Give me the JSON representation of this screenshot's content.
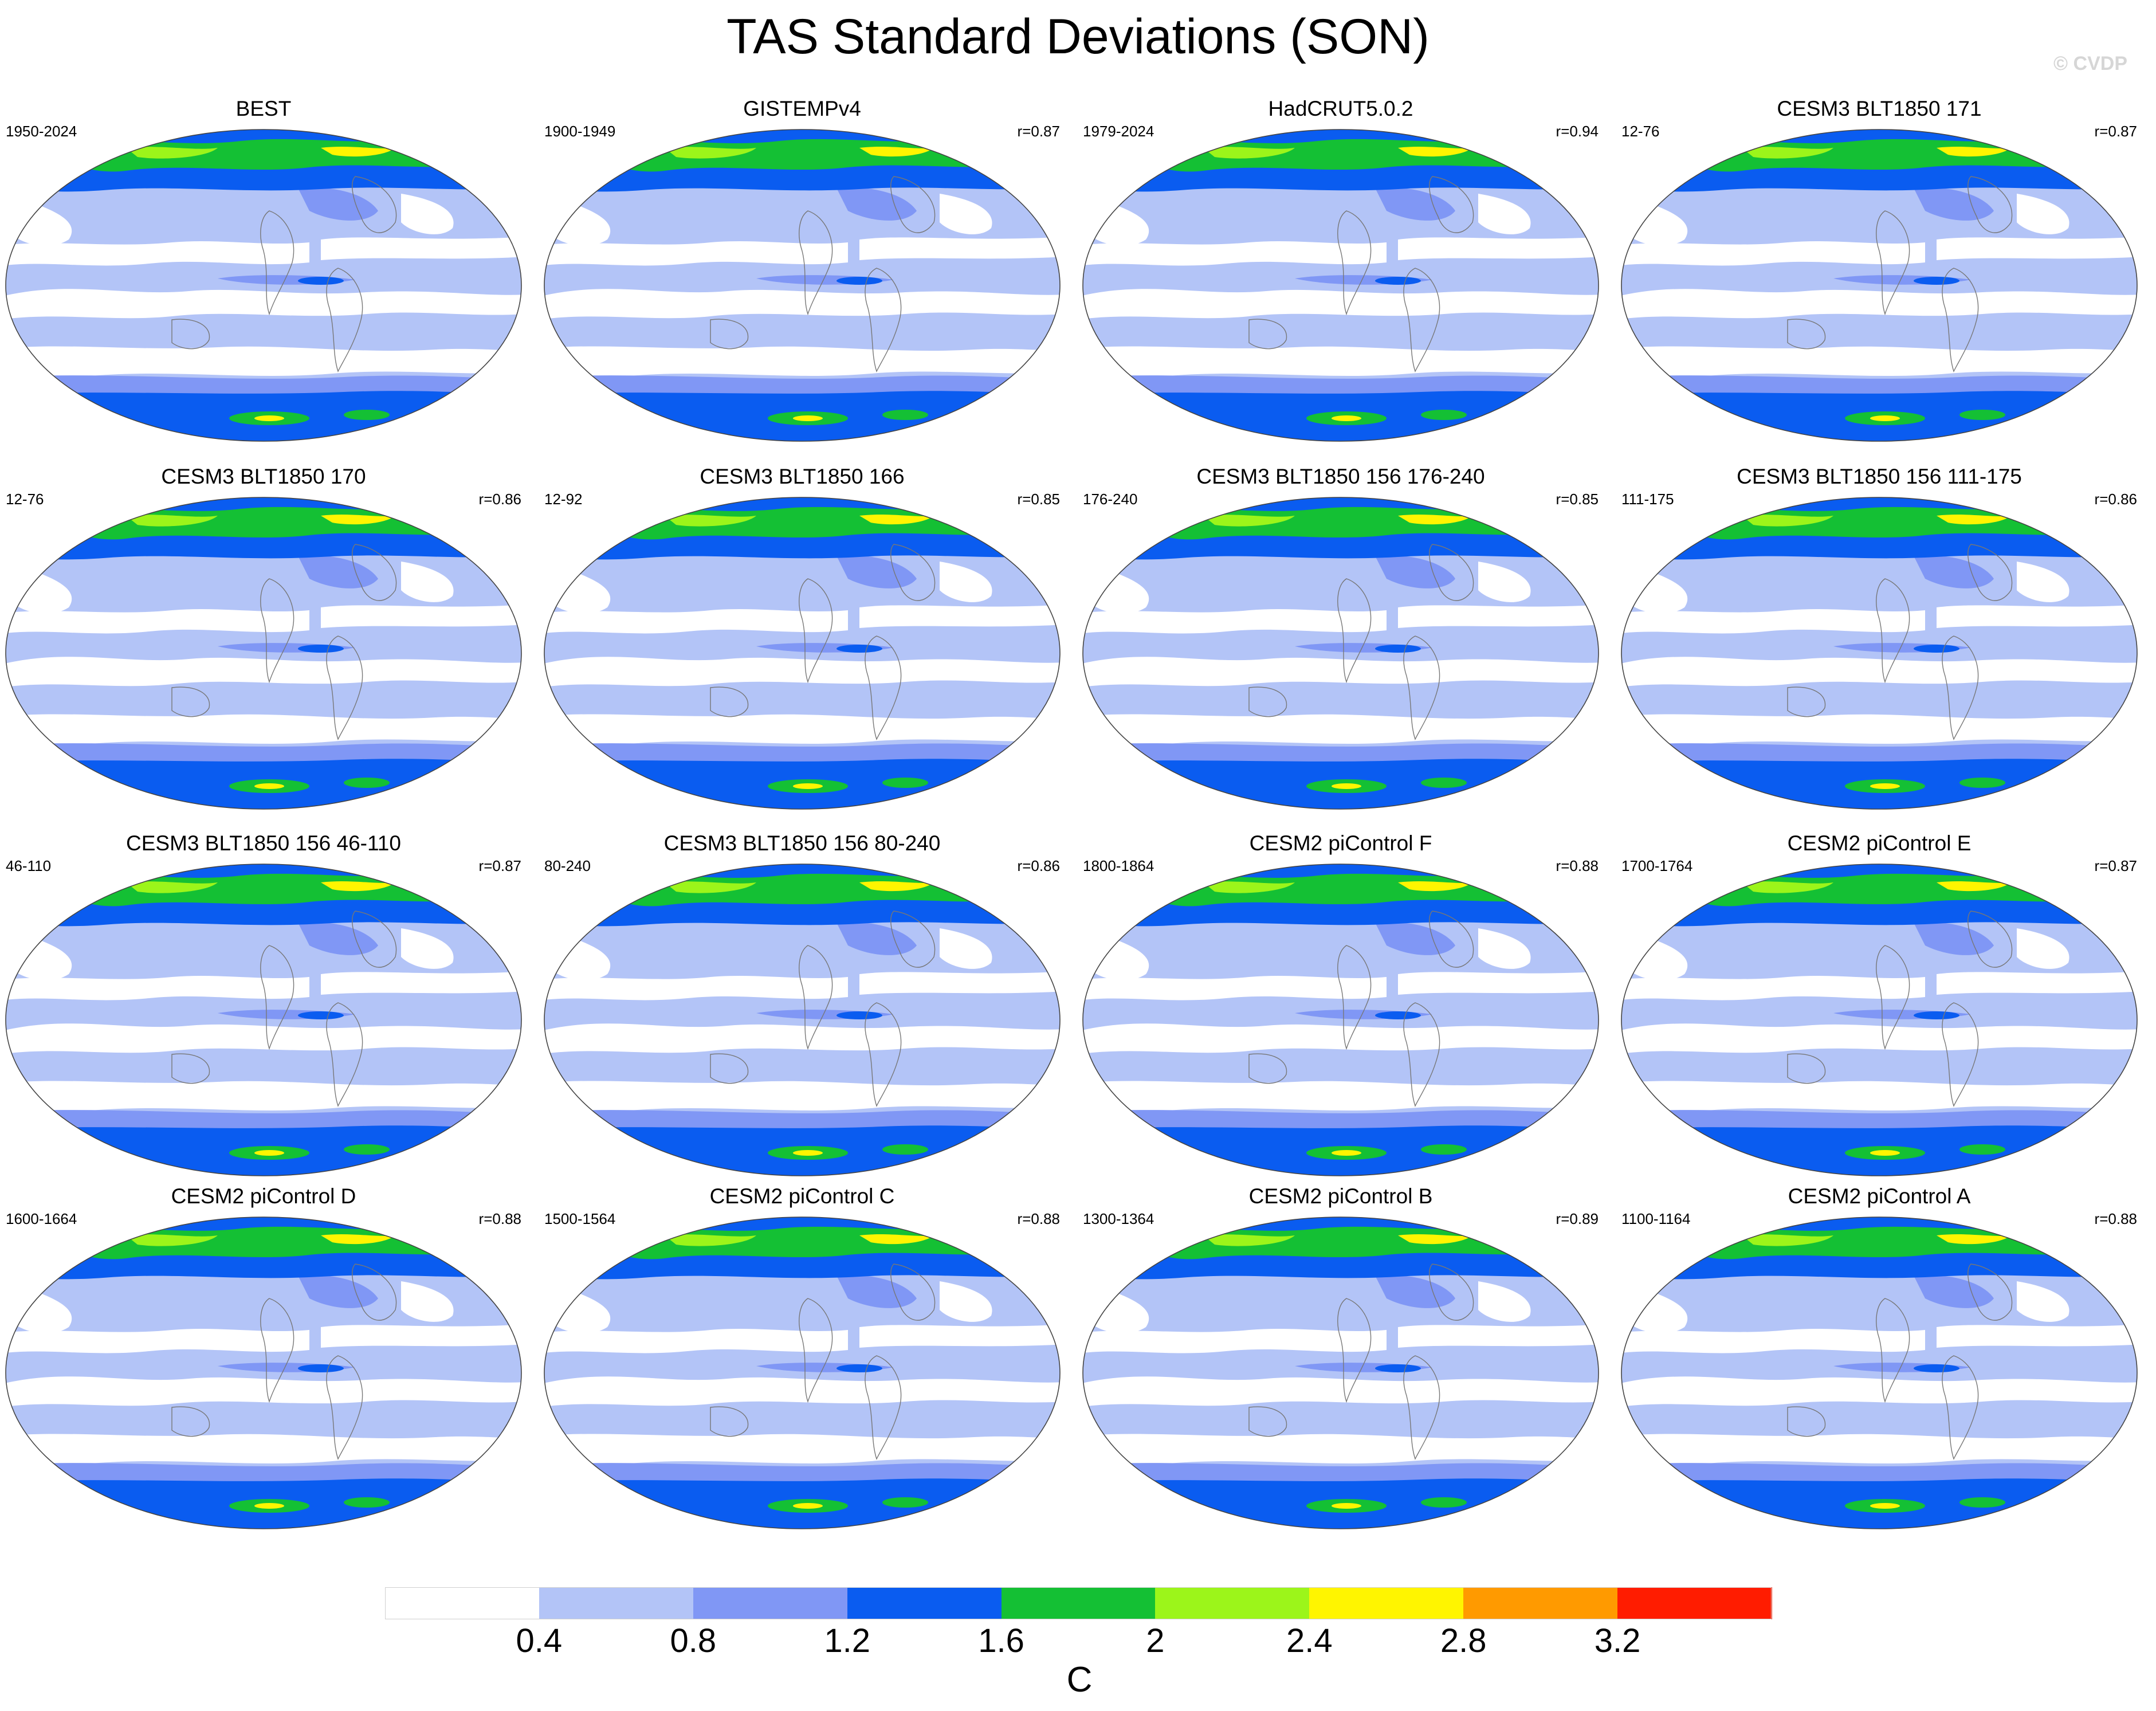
{
  "title": "TAS Standard Deviations (SON)",
  "copyright": "© CVDP",
  "panels": [
    {
      "title": "BEST",
      "period": "1950-2024",
      "corr": ""
    },
    {
      "title": "GISTEMPv4",
      "period": "1900-1949",
      "corr": "r=0.87"
    },
    {
      "title": "HadCRUT5.0.2",
      "period": "1979-2024",
      "corr": "r=0.94"
    },
    {
      "title": "CESM3 BLT1850 171",
      "period": "12-76",
      "corr": "r=0.87"
    },
    {
      "title": "CESM3 BLT1850 170",
      "period": "12-76",
      "corr": "r=0.86"
    },
    {
      "title": "CESM3 BLT1850 166",
      "period": "12-92",
      "corr": "r=0.85"
    },
    {
      "title": "CESM3 BLT1850 156 176-240",
      "period": "176-240",
      "corr": "r=0.85"
    },
    {
      "title": "CESM3 BLT1850 156 111-175",
      "period": "111-175",
      "corr": "r=0.86"
    },
    {
      "title": "CESM3 BLT1850 156 46-110",
      "period": "46-110",
      "corr": "r=0.87"
    },
    {
      "title": "CESM3 BLT1850 156 80-240",
      "period": "80-240",
      "corr": "r=0.86"
    },
    {
      "title": "CESM2 piControl F",
      "period": "1800-1864",
      "corr": "r=0.88"
    },
    {
      "title": "CESM2 piControl E",
      "period": "1700-1764",
      "corr": "r=0.87"
    },
    {
      "title": "CESM2 piControl D",
      "period": "1600-1664",
      "corr": "r=0.88"
    },
    {
      "title": "CESM2 piControl C",
      "period": "1500-1564",
      "corr": "r=0.88"
    },
    {
      "title": "CESM2 piControl B",
      "period": "1300-1364",
      "corr": "r=0.89"
    },
    {
      "title": "CESM2 piControl A",
      "period": "1100-1164",
      "corr": "r=0.88"
    }
  ],
  "colorbar": {
    "unit": "C",
    "labels": [
      "0.4",
      "0.8",
      "1.2",
      "1.6",
      "2",
      "2.4",
      "2.8",
      "3.2"
    ],
    "colors": [
      "#ffffff",
      "#b3c4f7",
      "#8097f5",
      "#0a5cf0",
      "#14c034",
      "#9cf51a",
      "#fff500",
      "#ff9a00",
      "#ff1c00"
    ]
  }
}
